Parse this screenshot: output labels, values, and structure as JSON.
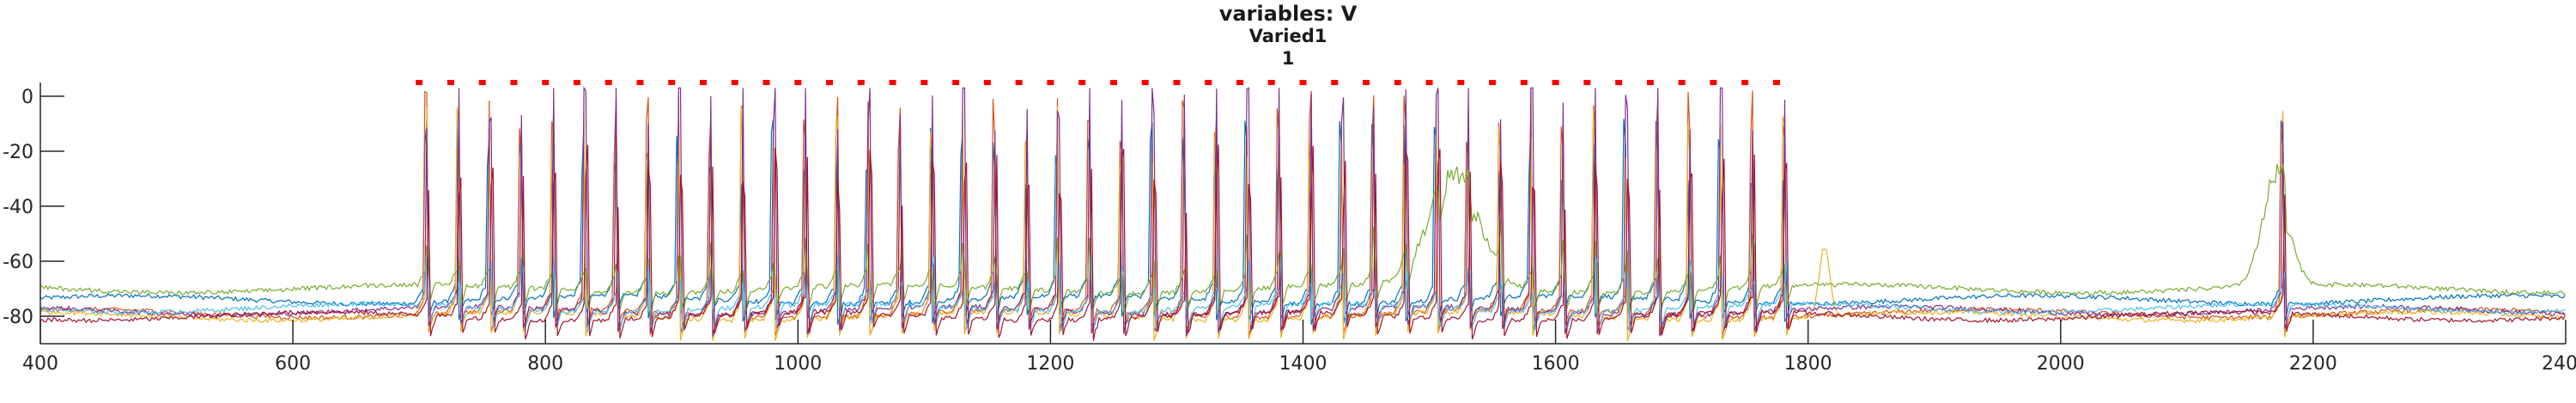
{
  "chart_data": {
    "type": "line",
    "title": "variables: V",
    "subtitle": "Varied1",
    "subtitle2": "1",
    "xlim": [
      400,
      2400
    ],
    "ylim": [
      -90,
      5
    ],
    "xticks": [
      400,
      600,
      800,
      1000,
      1200,
      1400,
      1600,
      1800,
      2000,
      2200,
      2400
    ],
    "yticks": [
      0,
      -20,
      -40,
      -60,
      -80
    ],
    "xticklabels": [
      "400",
      "600",
      "800",
      "1000",
      "1200",
      "1400",
      "1600",
      "1800",
      "2000",
      "2200",
      "2400"
    ],
    "yticklabels": [
      "0",
      "-20",
      "-40",
      "-60",
      "-80"
    ],
    "stimulus_marker": {
      "color": "#ff0000",
      "y": 5,
      "x_start": 700,
      "x_end": 1780,
      "interval": 25
    },
    "spike_times": [
      705,
      730,
      755,
      780,
      805,
      830,
      855,
      880,
      905,
      930,
      955,
      980,
      1005,
      1030,
      1055,
      1080,
      1105,
      1130,
      1155,
      1180,
      1205,
      1230,
      1255,
      1280,
      1305,
      1330,
      1355,
      1380,
      1405,
      1430,
      1455,
      1480,
      1505,
      1530,
      1555,
      1580,
      1605,
      1630,
      1655,
      1680,
      1705,
      1730,
      1755,
      1780,
      2175
    ],
    "series": [
      {
        "color": "#0072bd",
        "baseline": -74,
        "spike_peak": -20
      },
      {
        "color": "#d95319",
        "baseline": -79,
        "spike_peak": -10
      },
      {
        "color": "#edb120",
        "baseline": -80,
        "spike_peak": -15
      },
      {
        "color": "#7e2f8e",
        "baseline": -78,
        "spike_peak": 0
      },
      {
        "color": "#77ac30",
        "baseline": -70,
        "spike_peak": -60
      },
      {
        "color": "#4dbeee",
        "baseline": -77,
        "spike_peak": -70
      },
      {
        "color": "#a2142f",
        "baseline": -80,
        "spike_peak": -30
      }
    ],
    "grid": false,
    "legend": "none"
  }
}
